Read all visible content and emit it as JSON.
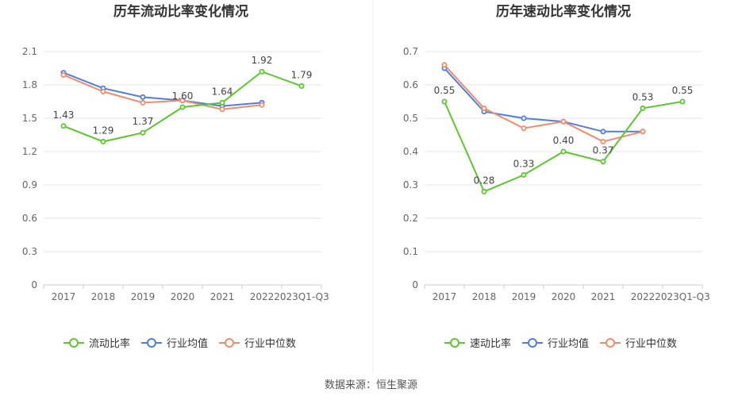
{
  "chart_data": [
    {
      "type": "line",
      "title": "历年流动比率变化情况",
      "categories": [
        "2017",
        "2018",
        "2019",
        "2020",
        "2021",
        "2022",
        "2023Q1-Q3"
      ],
      "ylim": [
        0,
        2.1
      ],
      "yticks": [
        "0",
        "0.3",
        "0.6",
        "0.9",
        "1.2",
        "1.5",
        "1.8",
        "2.1"
      ],
      "legend_position": "bottom",
      "series": [
        {
          "name": "流动比率",
          "color": "#5cc72e",
          "values": [
            1.43,
            1.29,
            1.37,
            1.6,
            1.64,
            1.92,
            1.79
          ],
          "labels": [
            "1.43",
            "1.29",
            "1.37",
            "1.60",
            "1.64",
            "1.92",
            "1.79"
          ]
        },
        {
          "name": "行业均值",
          "color": "#4e7fe0",
          "values": [
            1.91,
            1.77,
            1.69,
            1.66,
            1.61,
            1.64,
            null
          ]
        },
        {
          "name": "行业中位数",
          "color": "#f08c6c",
          "values": [
            1.89,
            1.74,
            1.64,
            1.66,
            1.58,
            1.62,
            null
          ]
        }
      ]
    },
    {
      "type": "line",
      "title": "历年速动比率变化情况",
      "categories": [
        "2017",
        "2018",
        "2019",
        "2020",
        "2021",
        "2022",
        "2023Q1-Q3"
      ],
      "ylim": [
        0,
        0.7
      ],
      "yticks": [
        "0",
        "0.1",
        "0.2",
        "0.3",
        "0.4",
        "0.5",
        "0.6",
        "0.7"
      ],
      "legend_position": "bottom",
      "series": [
        {
          "name": "速动比率",
          "color": "#5cc72e",
          "values": [
            0.55,
            0.28,
            0.33,
            0.4,
            0.37,
            0.53,
            0.55
          ],
          "labels": [
            "0.55",
            "0.28",
            "0.33",
            "0.40",
            "0.37",
            "0.53",
            "0.55"
          ]
        },
        {
          "name": "行业均值",
          "color": "#4e7fe0",
          "values": [
            0.65,
            0.52,
            0.5,
            0.49,
            0.46,
            0.46,
            null
          ]
        },
        {
          "name": "行业中位数",
          "color": "#f08c6c",
          "values": [
            0.66,
            0.53,
            0.47,
            0.49,
            0.43,
            0.46,
            null
          ]
        }
      ]
    }
  ],
  "source": "数据来源：恒生聚源"
}
